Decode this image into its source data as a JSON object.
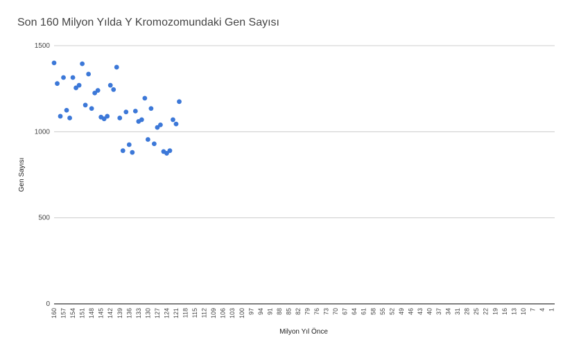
{
  "chart_data": {
    "type": "scatter",
    "title": "Son 160 Milyon Yılda Y Kromozomundaki Gen Sayısı",
    "xlabel": "Milyon Yıl Önce",
    "ylabel": "Gen Sayısı",
    "ylim": [
      0,
      1500
    ],
    "yticks": [
      "0",
      "500",
      "1000",
      "1500"
    ],
    "xlim": [
      160,
      0
    ],
    "x_tick_labels": [
      "160",
      "157",
      "154",
      "151",
      "148",
      "145",
      "142",
      "139",
      "136",
      "133",
      "130",
      "127",
      "124",
      "121",
      "118",
      "115",
      "112",
      "109",
      "106",
      "103",
      "100",
      "97",
      "94",
      "91",
      "88",
      "85",
      "82",
      "79",
      "76",
      "73",
      "70",
      "67",
      "64",
      "61",
      "58",
      "55",
      "52",
      "49",
      "46",
      "43",
      "40",
      "37",
      "34",
      "31",
      "28",
      "25",
      "22",
      "19",
      "16",
      "13",
      "10",
      "7",
      "4",
      "1"
    ],
    "grid": true,
    "color": "#3c78d8",
    "x": [
      160,
      159,
      158,
      157,
      156,
      155,
      154,
      153,
      152,
      151,
      150,
      149,
      148,
      147,
      146,
      145,
      144,
      143,
      142,
      141,
      140,
      139,
      138,
      137,
      136,
      135,
      134,
      133,
      132,
      131,
      130,
      129,
      128,
      127,
      126,
      125,
      124,
      123,
      122,
      121,
      120
    ],
    "y": [
      1400,
      1280,
      1090,
      1315,
      1125,
      1080,
      1315,
      1255,
      1270,
      1395,
      1155,
      1335,
      1135,
      1225,
      1240,
      1085,
      1075,
      1090,
      1270,
      1245,
      1375,
      1080,
      890,
      1115,
      925,
      880,
      1120,
      1060,
      1070,
      1195,
      955,
      1135,
      930,
      1025,
      1040,
      885,
      875,
      890,
      1070,
      1045,
      1175
    ]
  }
}
